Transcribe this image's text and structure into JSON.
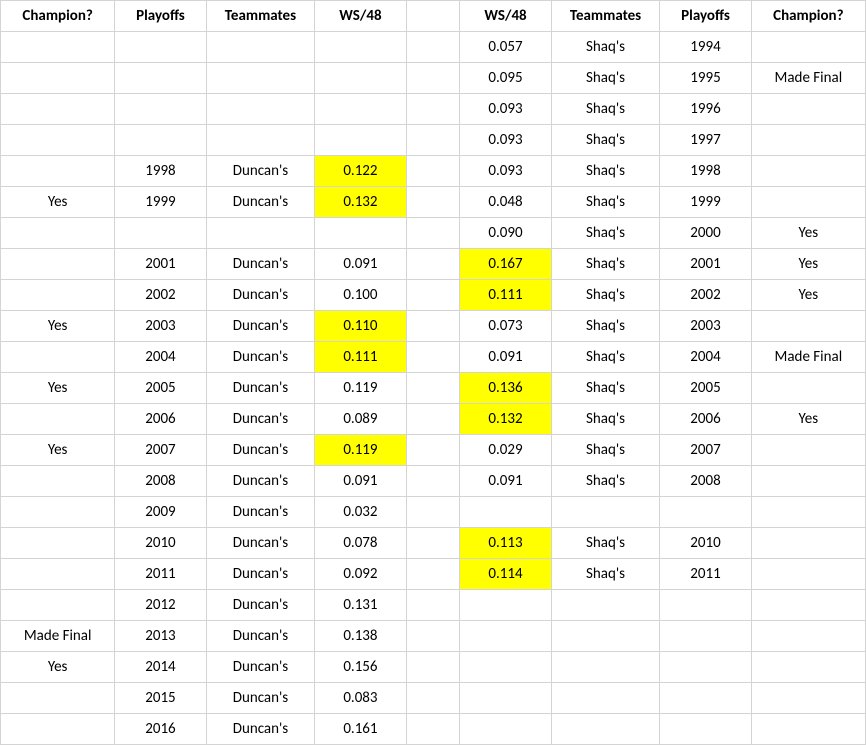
{
  "headers": {
    "left": [
      "Champion?",
      "Playoffs",
      "Teammates",
      "WS/48"
    ],
    "right": [
      "WS/48",
      "Teammates",
      "Playoffs",
      "Champion?"
    ]
  },
  "highlight_color": "#ffff00",
  "rows": [
    {
      "left": {
        "champion": "",
        "playoffs": "",
        "teammates": "",
        "ws48": "",
        "hl": false
      },
      "right": {
        "ws48": "0.057",
        "hl": false,
        "teammates": "Shaq's",
        "playoffs": "1994",
        "champion": ""
      }
    },
    {
      "left": {
        "champion": "",
        "playoffs": "",
        "teammates": "",
        "ws48": "",
        "hl": false
      },
      "right": {
        "ws48": "0.095",
        "hl": false,
        "teammates": "Shaq's",
        "playoffs": "1995",
        "champion": "Made Final"
      }
    },
    {
      "left": {
        "champion": "",
        "playoffs": "",
        "teammates": "",
        "ws48": "",
        "hl": false
      },
      "right": {
        "ws48": "0.093",
        "hl": false,
        "teammates": "Shaq's",
        "playoffs": "1996",
        "champion": ""
      }
    },
    {
      "left": {
        "champion": "",
        "playoffs": "",
        "teammates": "",
        "ws48": "",
        "hl": false
      },
      "right": {
        "ws48": "0.093",
        "hl": false,
        "teammates": "Shaq's",
        "playoffs": "1997",
        "champion": ""
      }
    },
    {
      "left": {
        "champion": "",
        "playoffs": "1998",
        "teammates": "Duncan's",
        "ws48": "0.122",
        "hl": true
      },
      "right": {
        "ws48": "0.093",
        "hl": false,
        "teammates": "Shaq's",
        "playoffs": "1998",
        "champion": ""
      }
    },
    {
      "left": {
        "champion": "Yes",
        "playoffs": "1999",
        "teammates": "Duncan's",
        "ws48": "0.132",
        "hl": true
      },
      "right": {
        "ws48": "0.048",
        "hl": false,
        "teammates": "Shaq's",
        "playoffs": "1999",
        "champion": ""
      }
    },
    {
      "left": {
        "champion": "",
        "playoffs": "",
        "teammates": "",
        "ws48": "",
        "hl": false
      },
      "right": {
        "ws48": "0.090",
        "hl": false,
        "teammates": "Shaq's",
        "playoffs": "2000",
        "champion": "Yes"
      }
    },
    {
      "left": {
        "champion": "",
        "playoffs": "2001",
        "teammates": "Duncan's",
        "ws48": "0.091",
        "hl": false
      },
      "right": {
        "ws48": "0.167",
        "hl": true,
        "teammates": "Shaq's",
        "playoffs": "2001",
        "champion": "Yes"
      }
    },
    {
      "left": {
        "champion": "",
        "playoffs": "2002",
        "teammates": "Duncan's",
        "ws48": "0.100",
        "hl": false
      },
      "right": {
        "ws48": "0.111",
        "hl": true,
        "teammates": "Shaq's",
        "playoffs": "2002",
        "champion": "Yes"
      }
    },
    {
      "left": {
        "champion": "Yes",
        "playoffs": "2003",
        "teammates": "Duncan's",
        "ws48": "0.110",
        "hl": true
      },
      "right": {
        "ws48": "0.073",
        "hl": false,
        "teammates": "Shaq's",
        "playoffs": "2003",
        "champion": ""
      }
    },
    {
      "left": {
        "champion": "",
        "playoffs": "2004",
        "teammates": "Duncan's",
        "ws48": "0.111",
        "hl": true
      },
      "right": {
        "ws48": "0.091",
        "hl": false,
        "teammates": "Shaq's",
        "playoffs": "2004",
        "champion": "Made Final"
      }
    },
    {
      "left": {
        "champion": "Yes",
        "playoffs": "2005",
        "teammates": "Duncan's",
        "ws48": "0.119",
        "hl": false
      },
      "right": {
        "ws48": "0.136",
        "hl": true,
        "teammates": "Shaq's",
        "playoffs": "2005",
        "champion": ""
      }
    },
    {
      "left": {
        "champion": "",
        "playoffs": "2006",
        "teammates": "Duncan's",
        "ws48": "0.089",
        "hl": false
      },
      "right": {
        "ws48": "0.132",
        "hl": true,
        "teammates": "Shaq's",
        "playoffs": "2006",
        "champion": "Yes"
      }
    },
    {
      "left": {
        "champion": "Yes",
        "playoffs": "2007",
        "teammates": "Duncan's",
        "ws48": "0.119",
        "hl": true
      },
      "right": {
        "ws48": "0.029",
        "hl": false,
        "teammates": "Shaq's",
        "playoffs": "2007",
        "champion": ""
      }
    },
    {
      "left": {
        "champion": "",
        "playoffs": "2008",
        "teammates": "Duncan's",
        "ws48": "0.091",
        "hl": false
      },
      "right": {
        "ws48": "0.091",
        "hl": false,
        "teammates": "Shaq's",
        "playoffs": "2008",
        "champion": ""
      }
    },
    {
      "left": {
        "champion": "",
        "playoffs": "2009",
        "teammates": "Duncan's",
        "ws48": "0.032",
        "hl": false
      },
      "right": {
        "ws48": "",
        "hl": false,
        "teammates": "",
        "playoffs": "",
        "champion": ""
      }
    },
    {
      "left": {
        "champion": "",
        "playoffs": "2010",
        "teammates": "Duncan's",
        "ws48": "0.078",
        "hl": false
      },
      "right": {
        "ws48": "0.113",
        "hl": true,
        "teammates": "Shaq's",
        "playoffs": "2010",
        "champion": ""
      }
    },
    {
      "left": {
        "champion": "",
        "playoffs": "2011",
        "teammates": "Duncan's",
        "ws48": "0.092",
        "hl": false
      },
      "right": {
        "ws48": "0.114",
        "hl": true,
        "teammates": "Shaq's",
        "playoffs": "2011",
        "champion": ""
      }
    },
    {
      "left": {
        "champion": "",
        "playoffs": "2012",
        "teammates": "Duncan's",
        "ws48": "0.131",
        "hl": false
      },
      "right": {
        "ws48": "",
        "hl": false,
        "teammates": "",
        "playoffs": "",
        "champion": ""
      }
    },
    {
      "left": {
        "champion": "Made Final",
        "playoffs": "2013",
        "teammates": "Duncan's",
        "ws48": "0.138",
        "hl": false
      },
      "right": {
        "ws48": "",
        "hl": false,
        "teammates": "",
        "playoffs": "",
        "champion": ""
      }
    },
    {
      "left": {
        "champion": "Yes",
        "playoffs": "2014",
        "teammates": "Duncan's",
        "ws48": "0.156",
        "hl": false
      },
      "right": {
        "ws48": "",
        "hl": false,
        "teammates": "",
        "playoffs": "",
        "champion": ""
      }
    },
    {
      "left": {
        "champion": "",
        "playoffs": "2015",
        "teammates": "Duncan's",
        "ws48": "0.083",
        "hl": false
      },
      "right": {
        "ws48": "",
        "hl": false,
        "teammates": "",
        "playoffs": "",
        "champion": ""
      }
    },
    {
      "left": {
        "champion": "",
        "playoffs": "2016",
        "teammates": "Duncan's",
        "ws48": "0.161",
        "hl": false
      },
      "right": {
        "ws48": "",
        "hl": false,
        "teammates": "",
        "playoffs": "",
        "champion": ""
      }
    }
  ]
}
